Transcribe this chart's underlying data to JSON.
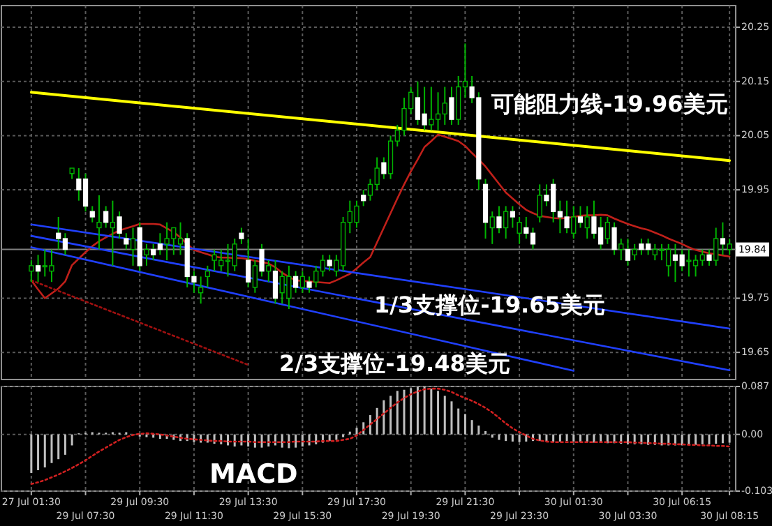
{
  "chart_data": [
    {
      "type": "candlestick",
      "categories": [
        "27 Jul 01:30",
        null,
        null,
        null,
        null,
        null,
        null,
        null,
        "29 Jul 07:30",
        null,
        null,
        null,
        null,
        null,
        null,
        null,
        "29 Jul 09:30",
        null,
        null,
        null,
        null,
        null,
        null,
        null,
        "29 Jul 11:30",
        null,
        null,
        null,
        null,
        null,
        null,
        null,
        "29 Jul 13:30",
        null,
        null,
        null,
        null,
        null,
        null,
        null,
        "29 Jul 15:30",
        null,
        null,
        null,
        null,
        null,
        null,
        null,
        "29 Jul 17:30",
        null,
        null,
        null,
        null,
        null,
        null,
        null,
        "29 Jul 19:30",
        null,
        null,
        null,
        null,
        null,
        null,
        null,
        "29 Jul 21:30",
        null,
        null,
        null,
        null,
        null,
        null,
        null,
        "29 Jul 23:30",
        null,
        null,
        null,
        null,
        null,
        null,
        null,
        "30 Jul 01:30",
        null,
        null,
        null,
        null,
        null,
        null,
        null,
        "30 Jul 03:30",
        null,
        null,
        null,
        null,
        null,
        null,
        null,
        "30 Jul 06:15",
        null,
        null,
        null,
        null,
        null,
        null,
        "30 Jul 08:15"
      ],
      "ohlc": [
        [
          19.8,
          19.82,
          19.78,
          19.81
        ],
        [
          19.81,
          19.83,
          19.78,
          19.8
        ],
        [
          19.81,
          19.84,
          19.79,
          19.81
        ],
        [
          19.8,
          19.84,
          19.78,
          19.81
        ],
        [
          19.87,
          19.9,
          19.84,
          19.86
        ],
        [
          19.86,
          19.87,
          19.83,
          19.84
        ],
        [
          19.98,
          19.99,
          19.97,
          19.99
        ],
        [
          19.97,
          19.99,
          19.93,
          19.95
        ],
        [
          19.97,
          19.98,
          19.91,
          19.92
        ],
        [
          19.91,
          19.92,
          19.89,
          19.9
        ],
        [
          19.88,
          19.94,
          19.84,
          19.89
        ],
        [
          19.91,
          19.92,
          19.88,
          19.89
        ],
        [
          19.88,
          19.93,
          19.81,
          19.89
        ],
        [
          19.9,
          19.91,
          19.86,
          19.87
        ],
        [
          19.86,
          19.87,
          19.84,
          19.85
        ],
        [
          19.84,
          19.88,
          19.81,
          19.86
        ],
        [
          19.88,
          19.89,
          19.8,
          19.81
        ],
        [
          19.83,
          19.85,
          19.81,
          19.84
        ],
        [
          19.84,
          19.85,
          19.82,
          19.83
        ],
        [
          19.85,
          19.87,
          19.83,
          19.84
        ],
        [
          19.85,
          19.89,
          19.82,
          19.86
        ],
        [
          19.86,
          19.88,
          19.83,
          19.88
        ],
        [
          19.85,
          19.89,
          19.83,
          19.86
        ],
        [
          19.86,
          19.87,
          19.77,
          19.79
        ],
        [
          19.79,
          19.8,
          19.76,
          19.78
        ],
        [
          19.76,
          19.79,
          19.74,
          19.77
        ],
        [
          19.79,
          19.81,
          19.77,
          19.8
        ],
        [
          19.82,
          19.84,
          19.8,
          19.83
        ],
        [
          19.81,
          19.84,
          19.8,
          19.82
        ],
        [
          19.82,
          19.85,
          19.79,
          19.82
        ],
        [
          19.81,
          19.86,
          19.8,
          19.85
        ],
        [
          19.87,
          19.88,
          19.85,
          19.86
        ],
        [
          19.82,
          19.86,
          19.77,
          19.78
        ],
        [
          19.77,
          19.82,
          19.76,
          19.81
        ],
        [
          19.84,
          19.85,
          19.79,
          19.8
        ],
        [
          19.8,
          19.82,
          19.78,
          19.81
        ],
        [
          19.8,
          19.82,
          19.74,
          19.75
        ],
        [
          19.76,
          19.8,
          19.74,
          19.79
        ],
        [
          19.75,
          19.81,
          19.73,
          19.79
        ],
        [
          19.79,
          19.8,
          19.76,
          19.77
        ],
        [
          19.77,
          19.8,
          19.76,
          19.79
        ],
        [
          19.78,
          19.79,
          19.76,
          19.77
        ],
        [
          19.78,
          19.81,
          19.77,
          19.8
        ],
        [
          19.8,
          19.83,
          19.79,
          19.82
        ],
        [
          19.82,
          19.83,
          19.8,
          19.81
        ],
        [
          19.8,
          19.83,
          19.79,
          19.82
        ],
        [
          19.81,
          19.9,
          19.8,
          19.89
        ],
        [
          19.89,
          19.93,
          19.87,
          19.91
        ],
        [
          19.89,
          19.93,
          19.88,
          19.92
        ],
        [
          19.94,
          19.95,
          19.92,
          19.93
        ],
        [
          19.94,
          19.97,
          19.93,
          19.96
        ],
        [
          19.96,
          20.01,
          19.95,
          19.99
        ],
        [
          20.0,
          20.01,
          19.97,
          19.98
        ],
        [
          19.98,
          20.05,
          19.97,
          20.04
        ],
        [
          20.04,
          20.07,
          20.03,
          20.06
        ],
        [
          20.06,
          20.12,
          20.05,
          20.1
        ],
        [
          20.1,
          20.14,
          20.09,
          20.13
        ],
        [
          20.12,
          20.15,
          20.07,
          20.08
        ],
        [
          20.09,
          20.14,
          20.06,
          20.07
        ],
        [
          20.07,
          20.14,
          20.06,
          20.08
        ],
        [
          20.08,
          20.13,
          20.06,
          20.09
        ],
        [
          20.09,
          20.14,
          20.07,
          20.11
        ],
        [
          20.12,
          20.14,
          20.07,
          20.08
        ],
        [
          20.08,
          20.16,
          20.07,
          20.14
        ],
        [
          20.14,
          20.22,
          20.12,
          20.15
        ],
        [
          20.14,
          20.16,
          20.11,
          20.12
        ],
        [
          20.12,
          20.13,
          19.95,
          19.97
        ],
        [
          19.96,
          19.97,
          19.86,
          19.89
        ],
        [
          19.88,
          19.91,
          19.85,
          19.9
        ],
        [
          19.9,
          19.92,
          19.87,
          19.88
        ],
        [
          19.88,
          19.92,
          19.86,
          19.91
        ],
        [
          19.91,
          19.92,
          19.88,
          19.9
        ],
        [
          19.87,
          19.9,
          19.85,
          19.89
        ],
        [
          19.88,
          19.9,
          19.86,
          19.87
        ],
        [
          19.87,
          19.88,
          19.84,
          19.85
        ],
        [
          19.9,
          19.96,
          19.89,
          19.94
        ],
        [
          19.94,
          19.96,
          19.92,
          19.93
        ],
        [
          19.96,
          19.97,
          19.89,
          19.91
        ],
        [
          19.91,
          19.93,
          19.87,
          19.9
        ],
        [
          19.9,
          19.93,
          19.87,
          19.88
        ],
        [
          19.87,
          19.92,
          19.86,
          19.9
        ],
        [
          19.9,
          19.92,
          19.88,
          19.89
        ],
        [
          19.88,
          19.92,
          19.86,
          19.9
        ],
        [
          19.9,
          19.93,
          19.86,
          19.87
        ],
        [
          19.88,
          19.9,
          19.84,
          19.85
        ],
        [
          19.86,
          19.9,
          19.85,
          19.89
        ],
        [
          19.88,
          19.89,
          19.83,
          19.84
        ],
        [
          19.84,
          19.86,
          19.82,
          19.85
        ],
        [
          19.84,
          19.86,
          19.81,
          19.82
        ],
        [
          19.83,
          19.85,
          19.82,
          19.84
        ],
        [
          19.85,
          19.86,
          19.83,
          19.84
        ],
        [
          19.85,
          19.86,
          19.83,
          19.84
        ],
        [
          19.83,
          19.85,
          19.82,
          19.84
        ],
        [
          19.84,
          19.85,
          19.82,
          19.84
        ],
        [
          19.81,
          19.85,
          19.79,
          19.84
        ],
        [
          19.83,
          19.85,
          19.78,
          19.82
        ],
        [
          19.83,
          19.84,
          19.8,
          19.81
        ],
        [
          19.82,
          19.84,
          19.79,
          19.82
        ],
        [
          19.81,
          19.83,
          19.79,
          19.82
        ],
        [
          19.82,
          19.84,
          19.81,
          19.83
        ],
        [
          19.83,
          19.84,
          19.81,
          19.82
        ],
        [
          19.82,
          19.88,
          19.81,
          19.86
        ],
        [
          19.86,
          19.89,
          19.83,
          19.85
        ],
        [
          19.84,
          19.86,
          19.83,
          19.85
        ]
      ],
      "series": [
        {
          "type": "line",
          "color": "#c0201a",
          "values": [
            19.783,
            19.766,
            19.75,
            19.759,
            19.768,
            19.781,
            19.811,
            19.823,
            19.835,
            19.846,
            19.855,
            19.862,
            19.869,
            19.875,
            19.879,
            19.883,
            19.887,
            19.887,
            19.887,
            19.886,
            19.879,
            19.872,
            19.862,
            19.85,
            19.839,
            19.835,
            19.831,
            19.827,
            19.825,
            19.825,
            19.824,
            19.824,
            19.822,
            19.819,
            19.817,
            19.814,
            19.807,
            19.797,
            19.789,
            19.783,
            19.782,
            19.781,
            19.78,
            19.779,
            19.778,
            19.783,
            19.789,
            19.795,
            19.805,
            19.816,
            19.826,
            19.853,
            19.88,
            19.907,
            19.934,
            19.96,
            19.984,
            20.006,
            20.029,
            20.04,
            20.052,
            20.048,
            20.044,
            20.04,
            20.031,
            20.018,
            20.006,
            19.993,
            19.977,
            19.961,
            19.945,
            19.934,
            19.923,
            19.913,
            19.907,
            19.902,
            19.9,
            19.898,
            19.897,
            19.898,
            19.9,
            19.902,
            19.903,
            19.903,
            19.904,
            19.903,
            19.897,
            19.892,
            19.887,
            19.883,
            19.879,
            19.876,
            19.871,
            19.866,
            19.86,
            19.855,
            19.85,
            19.844,
            19.839,
            19.836,
            19.833,
            19.831,
            19.829,
            19.827
          ]
        },
        {
          "type": "line",
          "color": "#ffff00",
          "x": [
            "27 Jul 01:30",
            "30 Jul 08:15"
          ],
          "values": [
            20.13,
            20.004
          ]
        },
        {
          "type": "line",
          "color": "#2040ff",
          "x": [
            "27 Jul 01:30",
            "30 Jul 08:15"
          ],
          "values": [
            19.886,
            19.694
          ]
        },
        {
          "type": "line",
          "color": "#2040ff",
          "x": [
            "27 Jul 01:30",
            "30 Jul 08:15"
          ],
          "values": [
            19.865,
            19.617
          ]
        },
        {
          "type": "line",
          "color": "#2040ff",
          "x": [
            "27 Jul 01:30",
            "30 Jul 01:30"
          ],
          "values": [
            19.844,
            19.616
          ]
        },
        {
          "type": "line",
          "color": "#a01010",
          "line_style": "dotted",
          "x": [
            "27 Jul 01:30",
            "29 Jul 13:30"
          ],
          "values": [
            19.783,
            19.627
          ]
        }
      ],
      "ylim": [
        19.6,
        20.29
      ],
      "yticks": [
        20.25,
        20.15,
        20.05,
        19.95,
        19.75,
        19.65
      ],
      "ref_lines": [
        {
          "axis": "y",
          "value": 19.84,
          "label": "19.84",
          "color": "#808080"
        }
      ],
      "annotations": [
        "可能阻力线-19.96美元",
        "1/3支撑位-19.65美元",
        "2/3支撑位-19.48美元"
      ],
      "grid": true,
      "tick_labels": "y"
    },
    {
      "type": "bar",
      "categories": [
        "27 Jul 01:30",
        null,
        null,
        null,
        null,
        null,
        null,
        null,
        "29 Jul 07:30",
        null,
        null,
        null,
        null,
        null,
        null,
        null,
        "29 Jul 09:30",
        null,
        null,
        null,
        null,
        null,
        null,
        null,
        "29 Jul 11:30",
        null,
        null,
        null,
        null,
        null,
        null,
        null,
        "29 Jul 13:30",
        null,
        null,
        null,
        null,
        null,
        null,
        null,
        "29 Jul 15:30",
        null,
        null,
        null,
        null,
        null,
        null,
        null,
        "29 Jul 17:30",
        null,
        null,
        null,
        null,
        null,
        null,
        null,
        "29 Jul 19:30",
        null,
        null,
        null,
        null,
        null,
        null,
        null,
        "29 Jul 21:30",
        null,
        null,
        null,
        null,
        null,
        null,
        null,
        "29 Jul 23:30",
        null,
        null,
        null,
        null,
        null,
        null,
        null,
        "30 Jul 01:30",
        null,
        null,
        null,
        null,
        null,
        null,
        null,
        "30 Jul 03:30",
        null,
        null,
        null,
        null,
        null,
        null,
        null,
        "30 Jul 06:15",
        null,
        null,
        null,
        null,
        null,
        null,
        "30 Jul 08:15"
      ],
      "series": [
        {
          "type": "bar",
          "color": "#c0c0c0",
          "values": [
            -0.07,
            -0.065,
            -0.06,
            -0.052,
            -0.045,
            -0.037,
            -0.02,
            0.002,
            0.003,
            0.004,
            0.003,
            0.003,
            0.004,
            0.003,
            0.004,
            null,
            -0.004,
            -0.005,
            -0.006,
            -0.008,
            -0.008,
            -0.01,
            -0.012,
            -0.012,
            -0.014,
            -0.015,
            -0.015,
            -0.017,
            -0.018,
            -0.02,
            -0.022,
            -0.02,
            -0.022,
            -0.024,
            -0.024,
            -0.022,
            -0.02,
            -0.024,
            -0.025,
            -0.024,
            -0.022,
            -0.02,
            -0.018,
            -0.015,
            -0.012,
            -0.01,
            -0.005,
            0.005,
            0.012,
            0.022,
            0.035,
            0.048,
            0.062,
            0.07,
            0.079,
            0.081,
            0.084,
            0.086,
            0.086,
            0.083,
            0.079,
            0.07,
            0.06,
            0.047,
            0.037,
            0.026,
            0.016,
            0.006,
            -0.006,
            -0.01,
            -0.012,
            -0.013,
            -0.014,
            -0.013,
            -0.012,
            -0.012,
            -0.013,
            -0.014,
            -0.013,
            -0.012,
            -0.013,
            -0.014,
            -0.014,
            -0.015,
            -0.015,
            -0.016,
            -0.016,
            -0.017,
            -0.017,
            -0.018,
            -0.018,
            -0.019,
            -0.019,
            -0.02,
            -0.02,
            -0.02,
            -0.02,
            -0.019,
            -0.019,
            -0.018,
            -0.018,
            -0.017,
            -0.016,
            -0.015
          ]
        },
        {
          "type": "line",
          "color": "#d02020",
          "line_style": "dotted",
          "values": [
            -0.09,
            -0.087,
            -0.083,
            -0.078,
            -0.073,
            -0.067,
            -0.061,
            -0.054,
            -0.047,
            -0.039,
            -0.031,
            -0.024,
            -0.017,
            -0.01,
            -0.005,
            -0.001,
            0.001,
            0.002,
            0.001,
            0,
            -0.002,
            -0.004,
            -0.006,
            -0.008,
            -0.009,
            -0.01,
            -0.011,
            -0.012,
            -0.012,
            -0.013,
            -0.013,
            -0.013,
            -0.013,
            -0.014,
            -0.014,
            -0.014,
            -0.014,
            -0.014,
            -0.014,
            -0.013,
            -0.013,
            -0.013,
            -0.013,
            -0.012,
            -0.012,
            -0.012,
            -0.01,
            -0.008,
            -0.002,
            0.008,
            0.018,
            0.028,
            0.038,
            0.048,
            0.058,
            0.066,
            0.073,
            0.078,
            0.082,
            0.083,
            0.083,
            0.081,
            0.077,
            0.071,
            0.066,
            0.061,
            0.055,
            0.048,
            0.04,
            0.03,
            0.02,
            0.011,
            0.004,
            -0.002,
            -0.008,
            -0.011,
            -0.013,
            -0.014,
            -0.014,
            -0.014,
            -0.014,
            -0.014,
            -0.014,
            -0.014,
            -0.014,
            -0.014,
            -0.014,
            -0.014,
            -0.014,
            -0.015,
            -0.015,
            -0.016,
            -0.016,
            -0.017,
            -0.017,
            -0.018,
            -0.018,
            -0.019,
            -0.019,
            -0.02,
            -0.02,
            -0.021,
            -0.021,
            -0.022
          ]
        }
      ],
      "ylim": [
        -0.103,
        0.087
      ],
      "yticks": [
        0.087,
        {
          "value": 0,
          "label": "0.00"
        },
        -0.103
      ],
      "annotations": [
        "MACD"
      ],
      "grid": true
    }
  ]
}
